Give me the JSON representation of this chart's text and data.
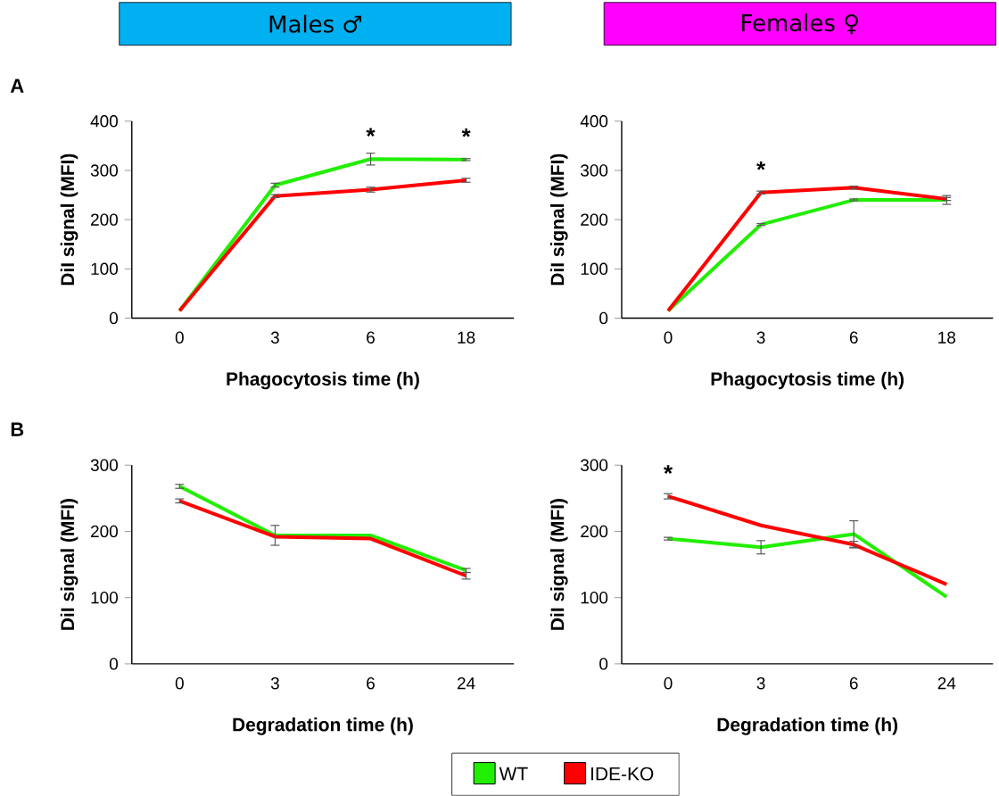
{
  "chart_data": [
    {
      "type": "line",
      "title": "Males ♂",
      "xlabel": "Phagocytosis time (h)",
      "ylabel": "DiI signal (MFI)",
      "categories": [
        "0",
        "3",
        "6",
        "18"
      ],
      "ylim": [
        0,
        400
      ],
      "yticks": [
        0,
        100,
        200,
        300,
        400
      ],
      "annotations": [
        "A",
        {
          "text": "*",
          "x": "6",
          "y": 323
        },
        {
          "text": "*",
          "x": "18",
          "y": 322
        }
      ],
      "series": [
        {
          "color": "#22ee00",
          "values": [
            15,
            270,
            323,
            322
          ],
          "errors": [
            null,
            4,
            12,
            2
          ]
        },
        {
          "color": "#ff0000",
          "values": [
            15,
            248,
            261,
            280
          ],
          "errors": [
            null,
            3,
            5,
            4
          ]
        }
      ]
    },
    {
      "type": "line",
      "title": "Females ♀",
      "xlabel": "Phagocytosis time (h)",
      "ylabel": "DiI signal (MFI)",
      "categories": [
        "0",
        "3",
        "6",
        "18"
      ],
      "ylim": [
        0,
        400
      ],
      "yticks": [
        0,
        100,
        200,
        300,
        400
      ],
      "annotations": [
        {
          "text": "*",
          "x": "3",
          "y": 255
        }
      ],
      "series": [
        {
          "color": "#22ee00",
          "values": [
            15,
            190,
            240,
            240
          ],
          "errors": [
            null,
            2,
            2,
            9
          ]
        },
        {
          "color": "#ff0000",
          "values": [
            15,
            255,
            265,
            242
          ],
          "errors": [
            null,
            3,
            3,
            3
          ]
        }
      ]
    },
    {
      "type": "line",
      "xlabel": "Degradation time (h)",
      "ylabel": "DiI signal (MFI)",
      "categories": [
        "0",
        "3",
        "6",
        "24"
      ],
      "ylim": [
        0,
        300
      ],
      "yticks": [
        0,
        100,
        200,
        300
      ],
      "annotations": [
        "B"
      ],
      "legend": "bottom",
      "series": [
        {
          "name": "WT",
          "color": "#22ee00",
          "values": [
            268,
            194,
            194,
            141
          ],
          "errors": [
            3,
            15,
            null,
            3
          ]
        },
        {
          "name": "IDE-KO",
          "color": "#ff0000",
          "values": [
            246,
            192,
            189,
            133
          ],
          "errors": [
            3,
            null,
            null,
            5
          ]
        }
      ]
    },
    {
      "type": "line",
      "xlabel": "Degradation time (h)",
      "ylabel": "DiI signal (MFI)",
      "categories": [
        "0",
        "3",
        "6",
        "24"
      ],
      "ylim": [
        0,
        300
      ],
      "yticks": [
        0,
        100,
        200,
        300
      ],
      "annotations": [
        {
          "text": "*",
          "x": "0",
          "y": 253
        }
      ],
      "series": [
        {
          "color": "#22ee00",
          "values": [
            189,
            176,
            196,
            101
          ],
          "errors": [
            2,
            10,
            20,
            null
          ]
        },
        {
          "color": "#ff0000",
          "values": [
            253,
            209,
            180,
            120
          ],
          "errors": [
            4,
            null,
            5,
            null
          ]
        }
      ]
    }
  ]
}
